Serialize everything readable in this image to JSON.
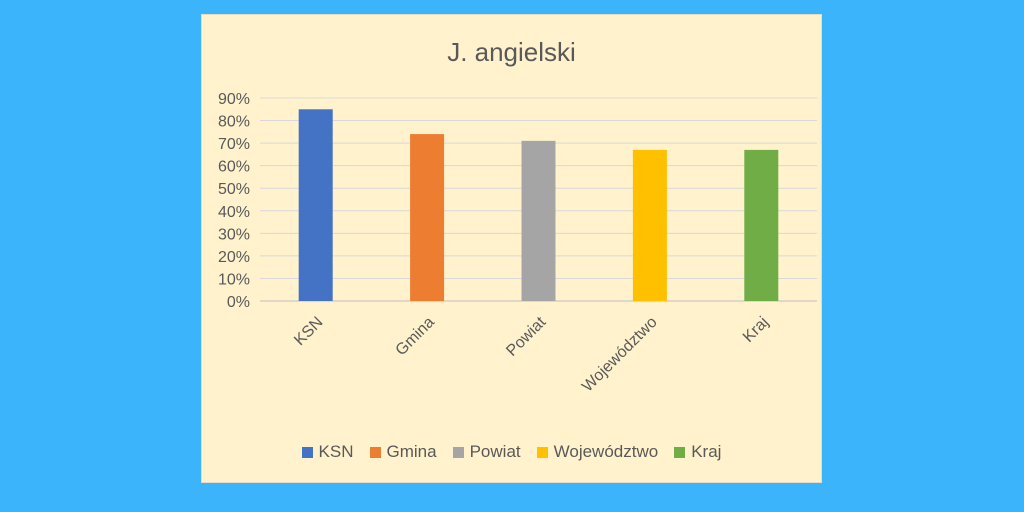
{
  "chart_data": {
    "type": "bar",
    "title": "J. angielski",
    "categories": [
      "KSN",
      "Gmina",
      "Powiat",
      "Województwo",
      "Kraj"
    ],
    "values": [
      85,
      74,
      71,
      67,
      67
    ],
    "colors": [
      "#4472c4",
      "#ed7d31",
      "#a5a5a5",
      "#ffc000",
      "#70ad47"
    ],
    "ylim": [
      0,
      90
    ],
    "yticks": [
      0,
      10,
      20,
      30,
      40,
      50,
      60,
      70,
      80,
      90
    ],
    "ytick_labels": [
      "0%",
      "10%",
      "20%",
      "30%",
      "40%",
      "50%",
      "60%",
      "70%",
      "80%",
      "90%"
    ],
    "grid": true,
    "legend": "bottom",
    "legend_entries": [
      "KSN",
      "Gmina",
      "Powiat",
      "Województwo",
      "Kraj"
    ]
  }
}
